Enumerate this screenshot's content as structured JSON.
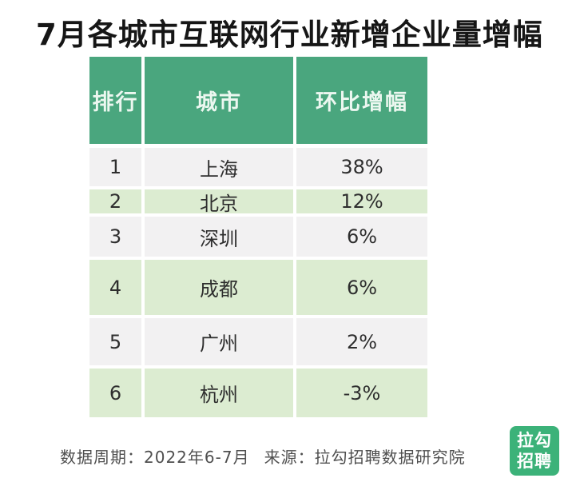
{
  "title": "7月各城市互联网行业新增企业量增幅",
  "table": {
    "headers": [
      "排行",
      "城市",
      "环比增幅"
    ],
    "rows": [
      {
        "rank": "1",
        "city": "上海",
        "value": "38%"
      },
      {
        "rank": "2",
        "city": "北京",
        "value": "12%"
      },
      {
        "rank": "3",
        "city": "深圳",
        "value": "6%"
      },
      {
        "rank": "4",
        "city": "成都",
        "value": "6%"
      },
      {
        "rank": "5",
        "city": "广州",
        "value": "2%"
      },
      {
        "rank": "6",
        "city": "杭州",
        "value": "-3%"
      }
    ]
  },
  "footer": {
    "data_period": "数据周期：2022年6-7月",
    "source": "来源：拉勾招聘数据研究院"
  },
  "logo": {
    "line1": "拉勾",
    "line2": "招聘"
  },
  "colors": {
    "header_green": "#4aa67e",
    "row_green": "#dcecd1",
    "row_gray": "#f2f1f2",
    "logo_green": "#3cb279"
  },
  "chart_data": {
    "type": "table",
    "title": "7月各城市互联网行业新增企业量增幅",
    "columns": [
      "排行",
      "城市",
      "环比增幅"
    ],
    "categories": [
      "上海",
      "北京",
      "深圳",
      "成都",
      "广州",
      "杭州"
    ],
    "values_pct": [
      38,
      12,
      6,
      6,
      2,
      -3
    ],
    "period": "2022年6-7月",
    "source": "拉勾招聘数据研究院"
  }
}
